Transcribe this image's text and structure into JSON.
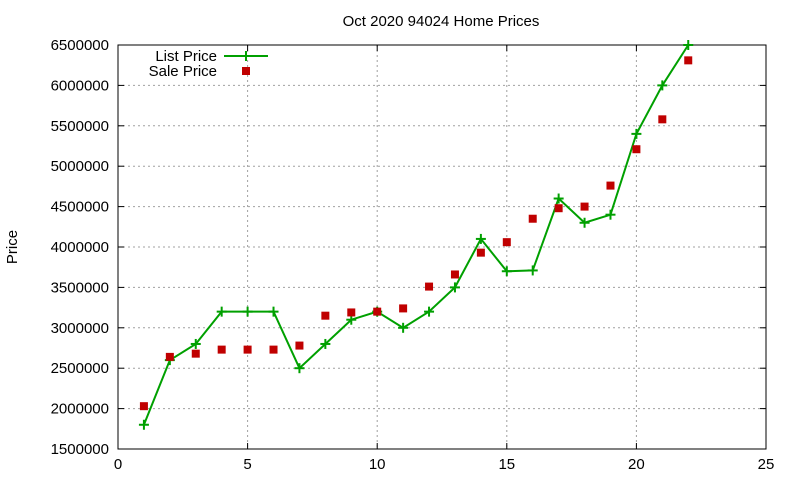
{
  "chart_data": {
    "type": "line",
    "title": "Oct 2020 94024 Home Prices",
    "xlabel": "",
    "ylabel": "Price",
    "xlim": [
      0,
      25
    ],
    "ylim": [
      1500000,
      6500000
    ],
    "xticks": [
      0,
      5,
      10,
      15,
      20,
      25
    ],
    "yticks": [
      1500000,
      2000000,
      2500000,
      3000000,
      3500000,
      4000000,
      4500000,
      5000000,
      5500000,
      6000000,
      6500000
    ],
    "grid": true,
    "legend_position": "top-left",
    "series": [
      {
        "name": "List Price",
        "style": "line-with-plus-markers",
        "color": "#00a000",
        "x": [
          1,
          2,
          3,
          4,
          5,
          6,
          7,
          8,
          9,
          10,
          11,
          12,
          13,
          14,
          15,
          16,
          17,
          18,
          19,
          20,
          21,
          22
        ],
        "y": [
          1800000,
          2600000,
          2800000,
          3200000,
          3200000,
          3200000,
          2500000,
          2800000,
          3100000,
          3200000,
          3000000,
          3200000,
          3500000,
          4100000,
          3700000,
          3710000,
          4600000,
          4300000,
          4400000,
          5400000,
          6000000,
          6500000
        ]
      },
      {
        "name": "Sale Price",
        "style": "square-markers",
        "color": "#c00000",
        "x": [
          1,
          2,
          3,
          4,
          5,
          6,
          7,
          8,
          9,
          10,
          11,
          12,
          13,
          14,
          15,
          16,
          17,
          18,
          19,
          20,
          21,
          22
        ],
        "y": [
          2030000,
          2640000,
          2680000,
          2730000,
          2730000,
          2730000,
          2780000,
          3150000,
          3190000,
          3200000,
          3240000,
          3510000,
          3660000,
          3930000,
          4060000,
          4350000,
          4480000,
          4500000,
          4760000,
          5210000,
          5580000,
          6310000
        ]
      }
    ]
  }
}
